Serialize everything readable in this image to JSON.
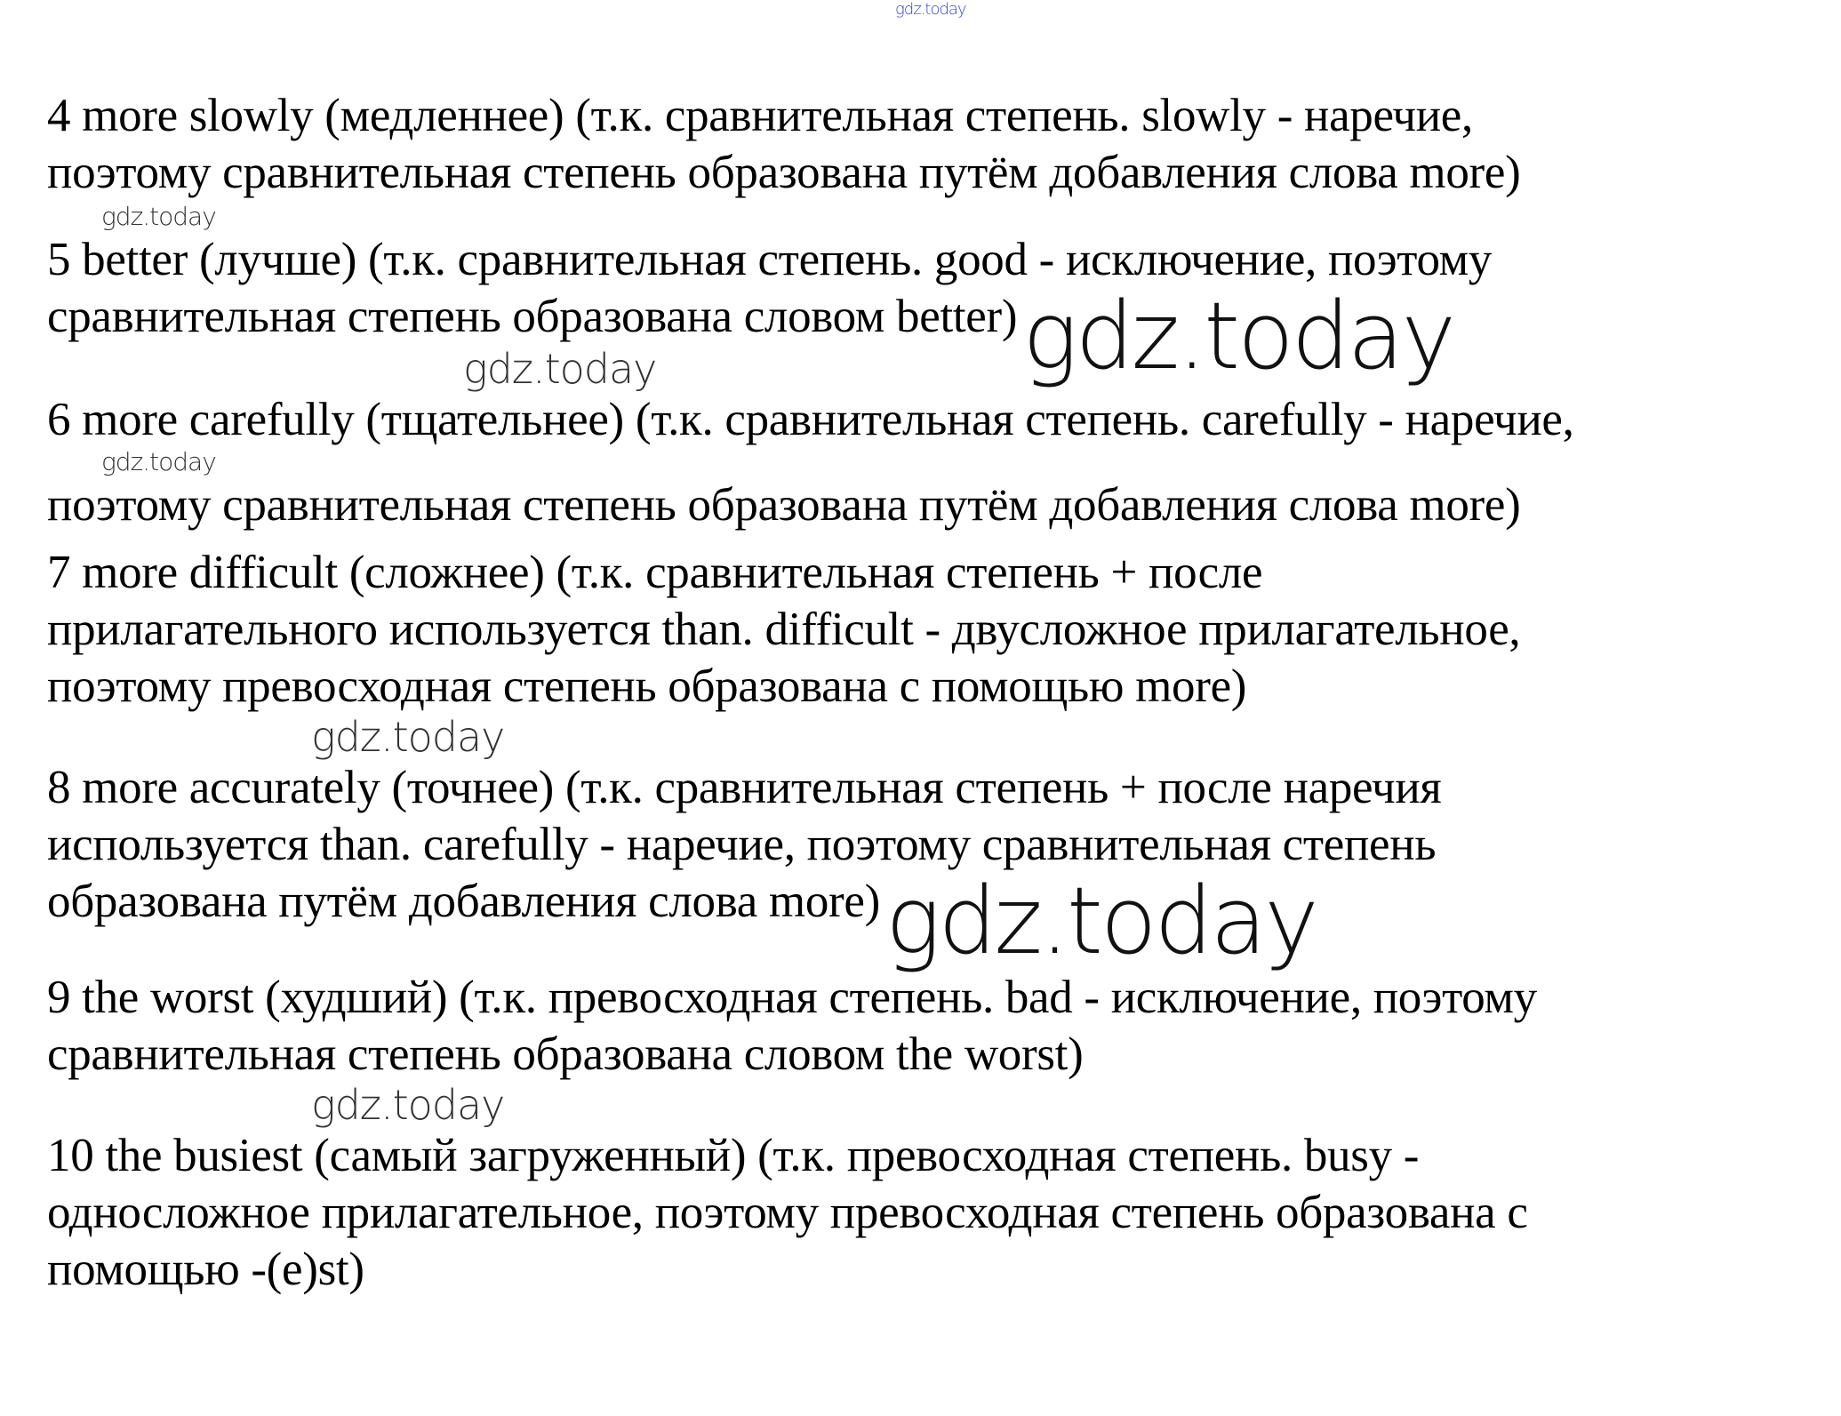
{
  "watermark": "gdz.today",
  "answers": [
    {
      "lines": [
        "4 more slowly (медленнее) (т.к. сравнительная степень. slowly - наречие,",
        "поэтому сравнительная степень образована путём добавления слова more)"
      ]
    },
    {
      "lines": [
        "5 better (лучше) (т.к. сравнительная степень. good - исключение, поэтому",
        "сравнительная степень образована словом better)"
      ]
    },
    {
      "lines": [
        "6 more carefully (тщательнее) (т.к. сравнительная степень. carefully - наречие,",
        "поэтому сравнительная степень образована путём добавления слова more)"
      ]
    },
    {
      "lines": [
        "7 more difficult (сложнее) (т.к. сравнительная степень + после",
        "прилагательного используется than. difficult - двусложное прилагательное,",
        "поэтому превосходная степень образована с помощью more)"
      ]
    },
    {
      "lines": [
        "8 more accurately (точнее) (т.к. сравнительная степень + после наречия",
        "используется than. carefully - наречие, поэтому сравнительная степень",
        "образована путём добавления слова more)"
      ]
    },
    {
      "lines": [
        "9 the worst (худший) (т.к. превосходная степень. bad - исключение, поэтому",
        "сравнительная степень образована словом the worst)"
      ]
    },
    {
      "lines": [
        "10 the busiest (самый загруженный) (т.к. превосходная степень. busy -",
        "односложное прилагательное, поэтому превосходная степень образована с",
        "помощью -(e)st)"
      ]
    }
  ],
  "colors": {
    "text": "#000000",
    "top_watermark": "#3344dd"
  }
}
